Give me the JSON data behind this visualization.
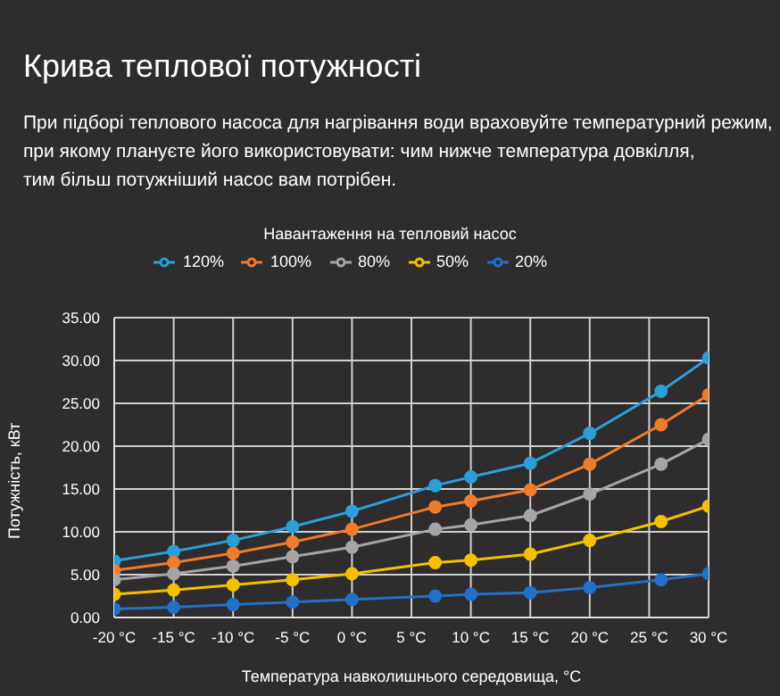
{
  "chart_data": {
    "type": "line",
    "title": "Крива теплової потужності",
    "subtitle": "При підборі теплового насоса для нагрівання води враховуйте температурний режим,\nпри якому плануєте його використовувати: чим нижче температура довкілля,\nтим більш потужніший насос вам потрібен.",
    "legend_title": "Навантаження на тепловий насос",
    "xlabel": "Температура навколишнього середовища, °C",
    "ylabel": "Потужність, кВт",
    "x": [
      -20,
      -15,
      -10,
      -5,
      0,
      7,
      10,
      15,
      20,
      26,
      30
    ],
    "series": [
      {
        "name": "120%",
        "color": "#2a9fd8",
        "values": [
          6.6,
          7.7,
          9.0,
          10.6,
          12.4,
          15.4,
          16.4,
          18.0,
          21.5,
          26.4,
          30.3
        ]
      },
      {
        "name": "100%",
        "color": "#f07b2c",
        "values": [
          5.5,
          6.4,
          7.5,
          8.8,
          10.3,
          12.9,
          13.6,
          14.9,
          17.9,
          22.5,
          26.0
        ]
      },
      {
        "name": "80%",
        "color": "#a5a5a5",
        "values": [
          4.4,
          5.1,
          6.0,
          7.1,
          8.2,
          10.3,
          10.8,
          11.9,
          14.4,
          17.9,
          20.8
        ]
      },
      {
        "name": "50%",
        "color": "#f5c000",
        "values": [
          2.7,
          3.2,
          3.8,
          4.4,
          5.1,
          6.4,
          6.7,
          7.4,
          9.0,
          11.2,
          13.0
        ]
      },
      {
        "name": "20%",
        "color": "#2270c8",
        "values": [
          1.0,
          1.2,
          1.5,
          1.8,
          2.1,
          2.5,
          2.7,
          2.9,
          3.5,
          4.4,
          5.1
        ]
      }
    ],
    "xlim": [
      -20,
      30
    ],
    "xticks": [
      {
        "value": -20,
        "label": "-20 °C"
      },
      {
        "value": -15,
        "label": "-15 °C"
      },
      {
        "value": -10,
        "label": "-10 °C"
      },
      {
        "value": -5,
        "label": "-5 °C"
      },
      {
        "value": 0,
        "label": "0 °C"
      },
      {
        "value": 5,
        "label": "5 °C"
      },
      {
        "value": 10,
        "label": "10 °C"
      },
      {
        "value": 15,
        "label": "15 °C"
      },
      {
        "value": 20,
        "label": "20 °C"
      },
      {
        "value": 25,
        "label": "25 °C"
      },
      {
        "value": 30,
        "label": "30 °C"
      }
    ],
    "ylim": [
      0,
      35
    ],
    "yticks": [
      {
        "value": 0,
        "label": "0.00"
      },
      {
        "value": 5,
        "label": "5.00"
      },
      {
        "value": 10,
        "label": "10.00"
      },
      {
        "value": 15,
        "label": "15.00"
      },
      {
        "value": 20,
        "label": "20.00"
      },
      {
        "value": 25,
        "label": "25.00"
      },
      {
        "value": 30,
        "label": "30.00"
      },
      {
        "value": 35,
        "label": "35.00"
      }
    ],
    "grid": true,
    "legend": "top",
    "marker": "circle",
    "line_style": "solid"
  }
}
